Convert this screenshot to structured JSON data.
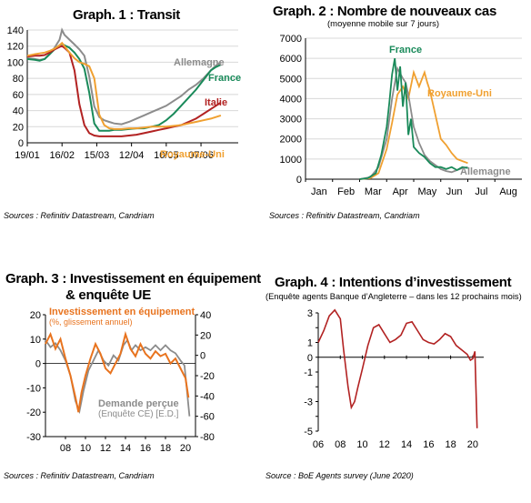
{
  "chart_data": [
    {
      "type": "line",
      "title": "Graph. 1 : Transit",
      "source": "Sources : Refinitiv Datastream, Candriam",
      "ylim": [
        0,
        140
      ],
      "yticks": [
        0,
        20,
        40,
        60,
        80,
        100,
        120,
        140
      ],
      "xlim": [
        0,
        170
      ],
      "xticks": [
        {
          "label": "19/01",
          "x": 0
        },
        {
          "label": "16/02",
          "x": 28
        },
        {
          "label": "15/03",
          "x": 56
        },
        {
          "label": "12/04",
          "x": 84
        },
        {
          "label": "10/05",
          "x": 112
        },
        {
          "label": "07/06",
          "x": 140
        }
      ],
      "grid": true,
      "series": [
        {
          "name": "Allemagne",
          "color": "#8c8c8c",
          "x": [
            0,
            6,
            10,
            14,
            18,
            22,
            26,
            28,
            30,
            34,
            38,
            42,
            46,
            50,
            54,
            58,
            62,
            66,
            70,
            76,
            82,
            88,
            94,
            100,
            106,
            112,
            118,
            124,
            130,
            136,
            142,
            148,
            152,
            156
          ],
          "y": [
            105,
            104,
            103,
            104,
            110,
            118,
            128,
            140,
            134,
            128,
            122,
            116,
            108,
            82,
            45,
            32,
            28,
            26,
            24,
            23,
            26,
            30,
            34,
            38,
            42,
            46,
            52,
            58,
            66,
            72,
            80,
            90,
            96,
            100
          ]
        },
        {
          "name": "France",
          "color": "#1a8a5a",
          "x": [
            0,
            6,
            10,
            14,
            18,
            22,
            26,
            28,
            30,
            34,
            38,
            42,
            46,
            50,
            54,
            58,
            62,
            66,
            70,
            76,
            82,
            88,
            94,
            100,
            106,
            112,
            118,
            124,
            130,
            136,
            142,
            148,
            152,
            156
          ],
          "y": [
            104,
            103,
            102,
            104,
            110,
            116,
            121,
            123,
            121,
            118,
            112,
            104,
            92,
            62,
            24,
            15,
            15,
            15,
            16,
            16,
            17,
            18,
            18,
            20,
            22,
            28,
            36,
            46,
            56,
            66,
            78,
            90,
            94,
            97
          ]
        },
        {
          "name": "Italie",
          "color": "#b22222",
          "x": [
            0,
            6,
            10,
            14,
            18,
            22,
            26,
            28,
            30,
            34,
            38,
            42,
            46,
            50,
            54,
            58,
            62,
            66,
            70,
            76,
            82,
            88,
            94,
            100,
            106,
            112,
            118,
            124,
            130,
            136,
            142,
            148,
            152,
            156
          ],
          "y": [
            107,
            108,
            108,
            109,
            112,
            116,
            119,
            120,
            118,
            112,
            90,
            48,
            22,
            12,
            9,
            8,
            8,
            8,
            8,
            8,
            9,
            10,
            12,
            14,
            16,
            18,
            20,
            22,
            26,
            30,
            36,
            42,
            46,
            50
          ]
        },
        {
          "name": "Royaume-Uni",
          "color": "#f0a030",
          "x": [
            0,
            6,
            10,
            14,
            18,
            22,
            26,
            28,
            30,
            34,
            38,
            42,
            46,
            50,
            54,
            58,
            62,
            66,
            70,
            76,
            82,
            88,
            94,
            100,
            106,
            112,
            118,
            124,
            130,
            136,
            142,
            148,
            152,
            156
          ],
          "y": [
            108,
            110,
            111,
            112,
            114,
            117,
            121,
            124,
            120,
            112,
            105,
            100,
            98,
            95,
            80,
            35,
            22,
            18,
            17,
            17,
            18,
            18,
            19,
            20,
            20,
            20,
            21,
            22,
            24,
            26,
            28,
            30,
            32,
            34
          ]
        }
      ],
      "labels": [
        {
          "text": "Allemagne",
          "color": "#8c8c8c"
        },
        {
          "text": "France",
          "color": "#1a8a5a"
        },
        {
          "text": "Italie",
          "color": "#b22222"
        },
        {
          "text": "Royaume-Uni",
          "color": "#f0a030"
        }
      ]
    },
    {
      "type": "line",
      "title": "Graph. 2 : Nombre de nouveaux cas",
      "subtitle": "(moyenne mobile sur 7 jours)",
      "source": "Sources : Refinitiv Datastream, Candriam",
      "ylim": [
        0,
        7000
      ],
      "yticks": [
        0,
        1000,
        2000,
        3000,
        4000,
        5000,
        6000,
        7000
      ],
      "xlim": [
        0,
        8
      ],
      "categories": [
        "Jan",
        "Feb",
        "Mar",
        "Apr",
        "May",
        "Jun",
        "Jul",
        "Aug"
      ],
      "grid": true,
      "series": [
        {
          "name": "France",
          "color": "#1a8a5a",
          "x": [
            2.0,
            2.3,
            2.6,
            2.8,
            3.0,
            3.1,
            3.2,
            3.3,
            3.4,
            3.5,
            3.6,
            3.7,
            3.8,
            3.9,
            4.0,
            4.2,
            4.4,
            4.6,
            4.8,
            5.0,
            5.2,
            5.4,
            5.6,
            5.8,
            6.0
          ],
          "y": [
            0,
            50,
            300,
            1200,
            2600,
            3800,
            5200,
            6000,
            4400,
            5600,
            3600,
            4800,
            2200,
            3000,
            1600,
            1300,
            1100,
            800,
            600,
            600,
            500,
            600,
            450,
            600,
            550
          ]
        },
        {
          "name": "Royaume-Uni",
          "color": "#f0a030",
          "x": [
            2.0,
            2.4,
            2.7,
            3.0,
            3.2,
            3.4,
            3.6,
            3.8,
            4.0,
            4.2,
            4.4,
            4.5,
            4.6,
            4.8,
            5.0,
            5.2,
            5.4,
            5.6,
            5.8,
            6.0
          ],
          "y": [
            0,
            50,
            300,
            1500,
            2800,
            4200,
            4600,
            4000,
            5300,
            4600,
            5300,
            4800,
            4400,
            3200,
            2000,
            1700,
            1300,
            1000,
            900,
            800
          ]
        },
        {
          "name": "Allemagne",
          "color": "#8c8c8c",
          "x": [
            2.0,
            2.4,
            2.7,
            3.0,
            3.2,
            3.4,
            3.6,
            3.7,
            3.8,
            4.0,
            4.2,
            4.4,
            4.6,
            4.8,
            5.0,
            5.2,
            5.4,
            5.6,
            5.8,
            6.0
          ],
          "y": [
            0,
            100,
            600,
            2000,
            4000,
            5500,
            5000,
            4800,
            4200,
            2600,
            1800,
            1200,
            900,
            700,
            500,
            400,
            350,
            450,
            550,
            600
          ]
        }
      ],
      "labels": [
        {
          "text": "France",
          "color": "#1a8a5a"
        },
        {
          "text": "Royaume-Uni",
          "color": "#f0a030"
        },
        {
          "text": "Allemagne",
          "color": "#8c8c8c"
        }
      ]
    },
    {
      "type": "line",
      "title": "Graph. 3 : Investissement en équipement",
      "title_line2": "& enquête UE",
      "source": "Sources : Refinitiv Datastream, Candriam",
      "ylim": [
        -30,
        20
      ],
      "yticks": [
        -30,
        -20,
        -10,
        0,
        10,
        20
      ],
      "y2lim": [
        -80,
        40
      ],
      "y2ticks": [
        -80,
        -60,
        -40,
        -20,
        0,
        20,
        40
      ],
      "xlim": [
        2006,
        2021
      ],
      "xticks": [
        {
          "label": "08",
          "x": 2008
        },
        {
          "label": "10",
          "x": 2010
        },
        {
          "label": "12",
          "x": 2012
        },
        {
          "label": "14",
          "x": 2014
        },
        {
          "label": "16",
          "x": 2016
        },
        {
          "label": "18",
          "x": 2018
        },
        {
          "label": "20",
          "x": 2020
        }
      ],
      "grid": false,
      "series": [
        {
          "name": "Investissement en équipement",
          "axis": "left",
          "color": "#e8731e",
          "x": [
            2006.0,
            2006.5,
            2007.0,
            2007.5,
            2008.0,
            2008.5,
            2009.0,
            2009.3,
            2009.6,
            2010.0,
            2010.5,
            2011.0,
            2011.5,
            2012.0,
            2012.5,
            2013.0,
            2013.5,
            2014.0,
            2014.5,
            2015.0,
            2015.5,
            2016.0,
            2016.5,
            2017.0,
            2017.5,
            2018.0,
            2018.5,
            2019.0,
            2019.5,
            2020.0,
            2020.3
          ],
          "y": [
            8,
            12,
            6,
            10,
            2,
            -5,
            -14,
            -20,
            -12,
            -5,
            2,
            8,
            4,
            -2,
            -4,
            0,
            4,
            12,
            6,
            3,
            8,
            4,
            2,
            5,
            3,
            4,
            0,
            2,
            -2,
            -6,
            -14
          ]
        },
        {
          "name": "Demande perçue (Enquête CE) [E.D.]",
          "axis": "right",
          "color": "#8c8c8c",
          "x": [
            2006.0,
            2006.5,
            2007.0,
            2007.5,
            2008.0,
            2008.5,
            2009.0,
            2009.4,
            2009.8,
            2010.3,
            2010.8,
            2011.3,
            2011.8,
            2012.3,
            2012.8,
            2013.3,
            2013.8,
            2014.2,
            2014.6,
            2015.0,
            2015.5,
            2016.0,
            2016.5,
            2017.0,
            2017.5,
            2018.0,
            2018.5,
            2019.0,
            2019.5,
            2019.9,
            2020.2,
            2020.4
          ],
          "y": [
            15,
            8,
            12,
            5,
            -5,
            -20,
            -45,
            -55,
            -35,
            -15,
            -5,
            5,
            -5,
            -10,
            0,
            -5,
            10,
            15,
            5,
            10,
            5,
            8,
            5,
            10,
            5,
            10,
            5,
            2,
            -5,
            -10,
            -40,
            -60
          ]
        }
      ],
      "labels": [
        {
          "text": "Investissement en équipement",
          "color": "#e8731e"
        },
        {
          "text": "(%, glissement annuel)",
          "color": "#e8731e"
        },
        {
          "text": "Demande perçue",
          "color": "#8c8c8c"
        },
        {
          "text": "(Enquête CE) [E.D.]",
          "color": "#8c8c8c"
        }
      ]
    },
    {
      "type": "line",
      "title": "Graph. 4 : Intentions d’investissement",
      "subtitle": "(Enquête agents Banque d’Angleterre – dans les 12 prochains mois)",
      "source": "Source : BoE Agents survey (June 2020)",
      "ylim": [
        -5,
        3
      ],
      "yticks": [
        -5,
        -3,
        -1,
        1,
        3
      ],
      "yticks_minor": [
        -4,
        -2,
        0,
        2
      ],
      "ytick_labels": [
        "-5",
        "-3",
        "-1",
        "1",
        "3"
      ],
      "ytick_minor_labels": [
        "",
        "",
        "0",
        ""
      ],
      "xlim": [
        2006,
        2021
      ],
      "xticks": [
        {
          "label": "06",
          "x": 2006
        },
        {
          "label": "08",
          "x": 2008
        },
        {
          "label": "10",
          "x": 2010
        },
        {
          "label": "12",
          "x": 2012
        },
        {
          "label": "14",
          "x": 2014
        },
        {
          "label": "16",
          "x": 2016
        },
        {
          "label": "18",
          "x": 2018
        },
        {
          "label": "20",
          "x": 2020
        }
      ],
      "grid": false,
      "series": [
        {
          "name": "",
          "color": "#b22222",
          "x": [
            2006.0,
            2006.5,
            2007.0,
            2007.5,
            2008.0,
            2008.3,
            2008.7,
            2009.0,
            2009.3,
            2009.6,
            2010.0,
            2010.5,
            2011.0,
            2011.5,
            2012.0,
            2012.5,
            2013.0,
            2013.5,
            2014.0,
            2014.5,
            2015.0,
            2015.5,
            2016.0,
            2016.5,
            2017.0,
            2017.5,
            2018.0,
            2018.5,
            2019.0,
            2019.5,
            2019.8,
            2020.0,
            2020.2,
            2020.4
          ],
          "y": [
            1.0,
            1.8,
            2.8,
            3.2,
            2.6,
            0.5,
            -2.0,
            -3.4,
            -3.0,
            -2.0,
            -0.8,
            0.8,
            2.0,
            2.2,
            1.6,
            1.0,
            1.2,
            1.5,
            2.3,
            2.4,
            1.8,
            1.2,
            1.0,
            0.9,
            1.2,
            1.6,
            1.4,
            0.8,
            0.5,
            0.2,
            -0.2,
            -0.1,
            0.4,
            -4.8
          ]
        }
      ]
    }
  ]
}
